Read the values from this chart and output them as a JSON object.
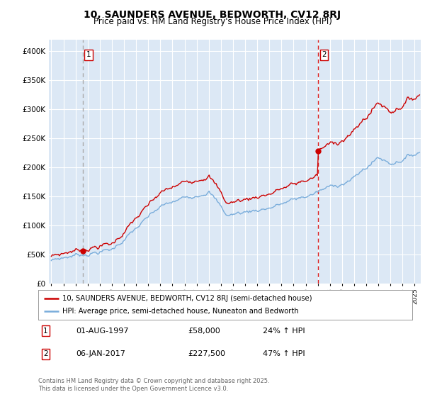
{
  "title": "10, SAUNDERS AVENUE, BEDWORTH, CV12 8RJ",
  "subtitle": "Price paid vs. HM Land Registry's House Price Index (HPI)",
  "legend_line1": "10, SAUNDERS AVENUE, BEDWORTH, CV12 8RJ (semi-detached house)",
  "legend_line2": "HPI: Average price, semi-detached house, Nuneaton and Bedworth",
  "annotation1_date": "01-AUG-1997",
  "annotation1_price": "£58,000",
  "annotation1_hpi": "24% ↑ HPI",
  "annotation1_year": 1997.6,
  "annotation1_value": 58000,
  "annotation2_date": "06-JAN-2017",
  "annotation2_price": "£227,500",
  "annotation2_hpi": "47% ↑ HPI",
  "annotation2_year": 2017.02,
  "annotation2_value": 227500,
  "price_line_color": "#cc0000",
  "hpi_line_color": "#7aaddb",
  "vline1_color": "#aaaaaa",
  "vline2_color": "#dd2222",
  "background_color": "#ffffff",
  "plot_bg_color": "#dce8f5",
  "grid_color": "#ffffff",
  "ylim": [
    0,
    420000
  ],
  "xlim_start": 1994.8,
  "xlim_end": 2025.5,
  "footer": "Contains HM Land Registry data © Crown copyright and database right 2025.\nThis data is licensed under the Open Government Licence v3.0.",
  "title_fontsize": 10,
  "subtitle_fontsize": 8.5
}
